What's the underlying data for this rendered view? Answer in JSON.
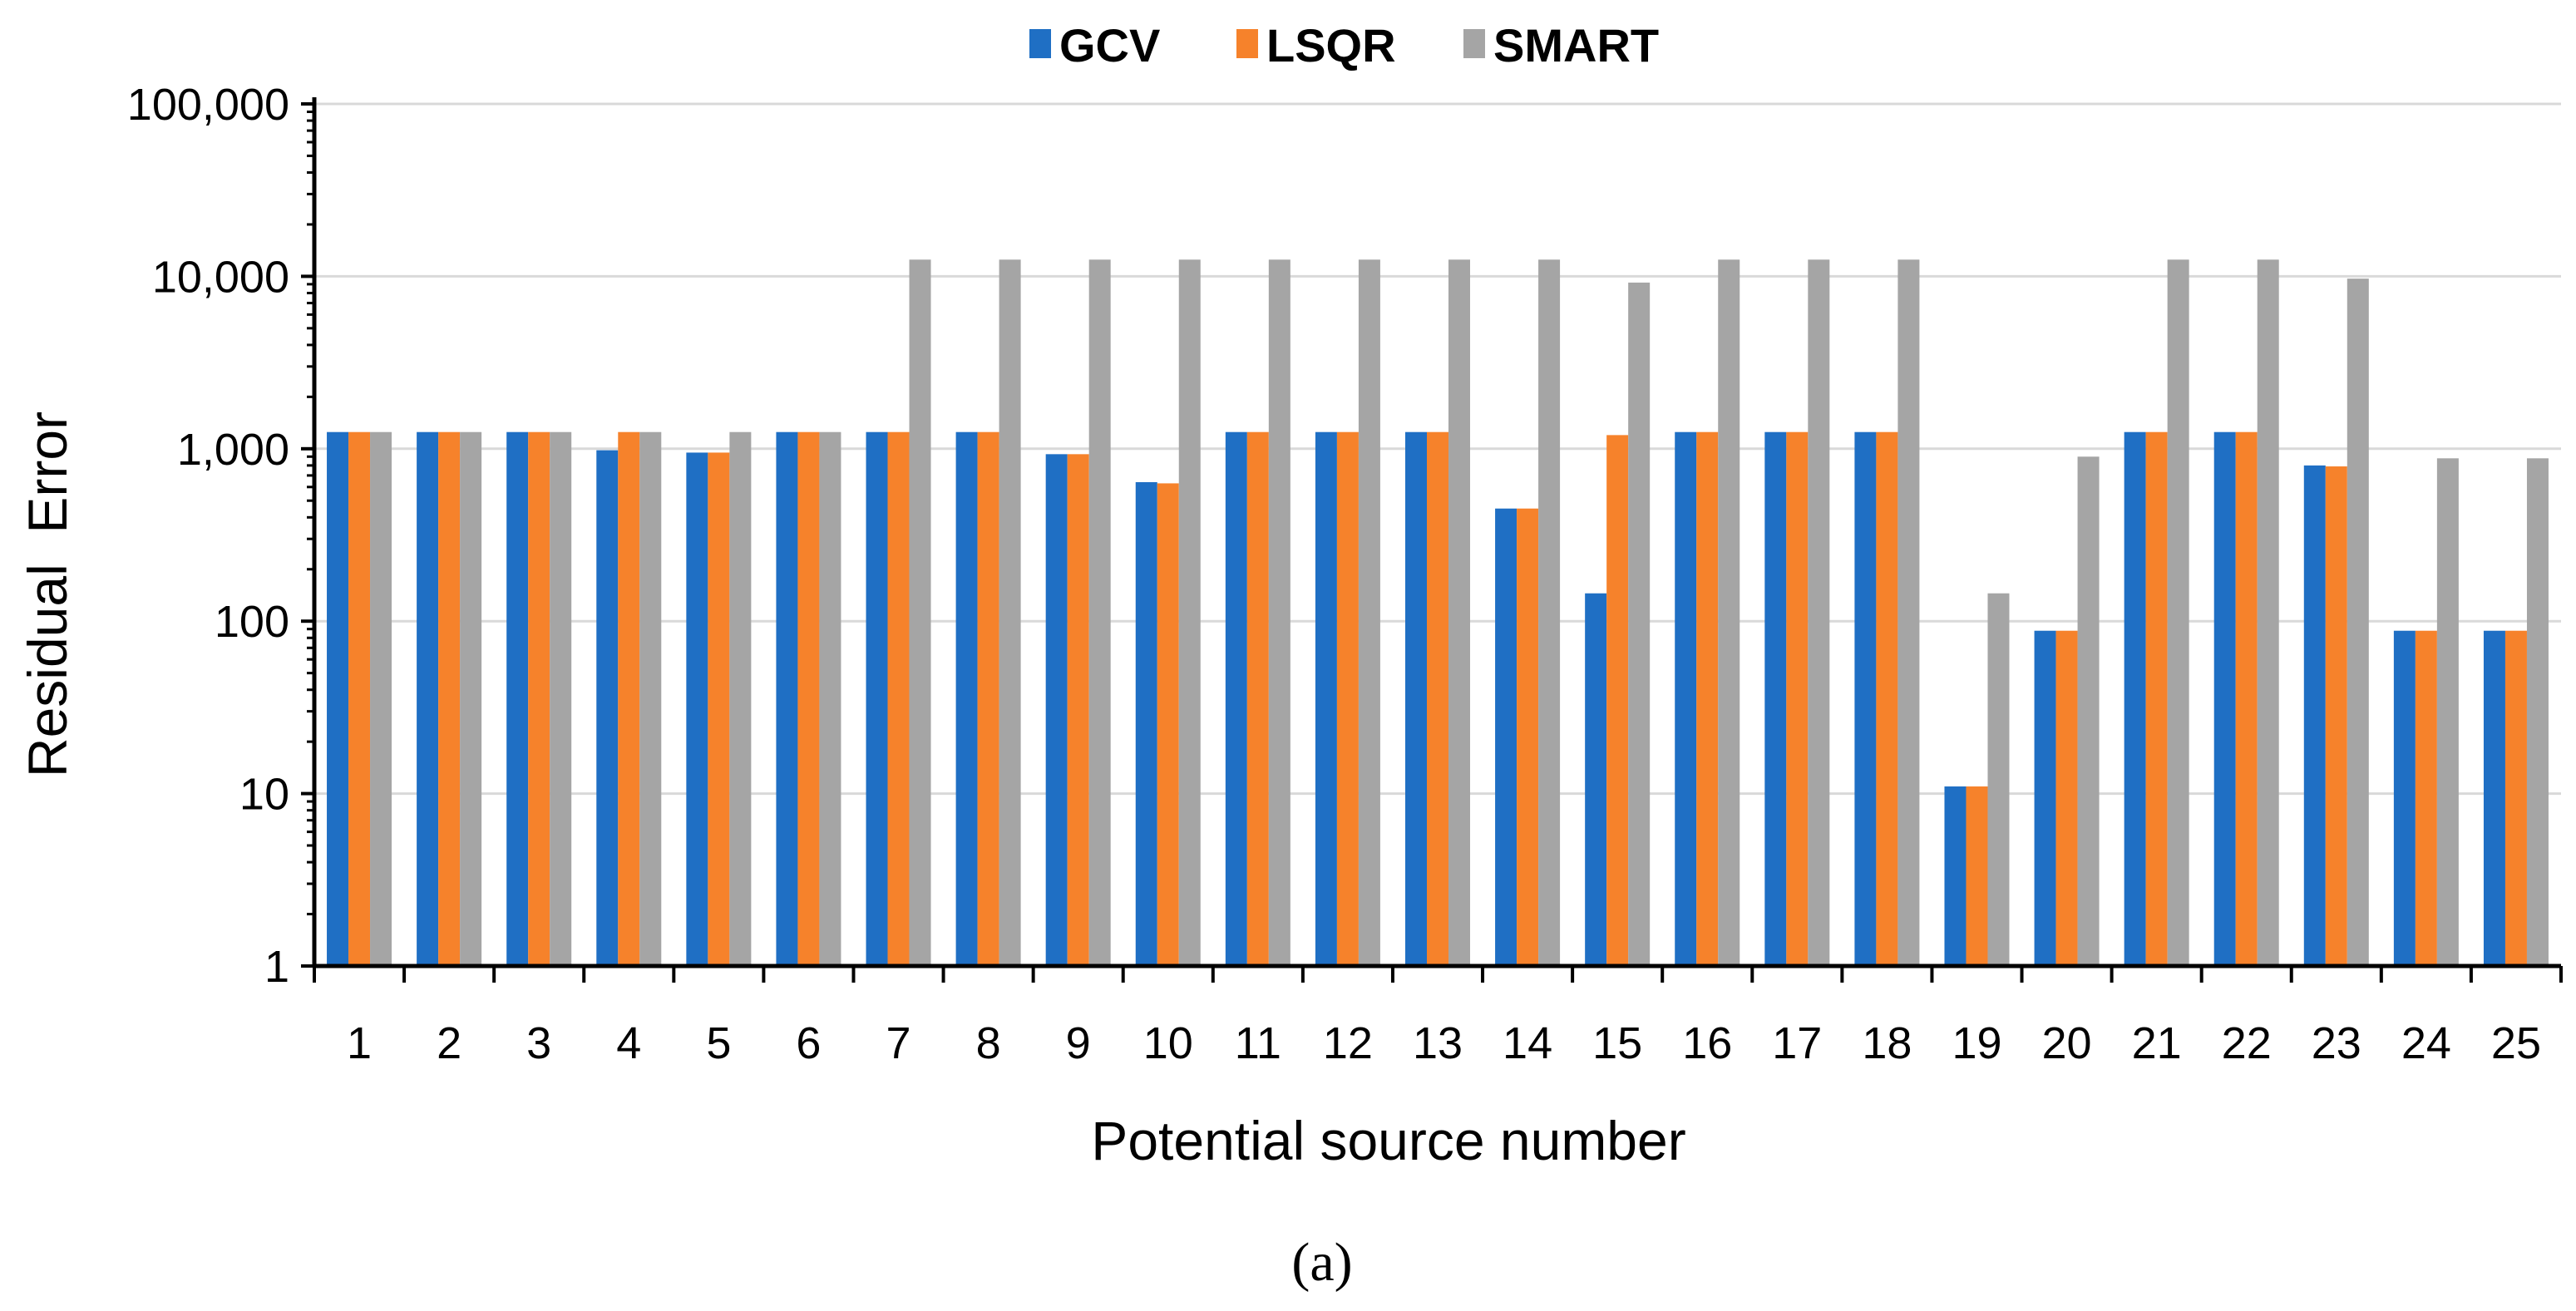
{
  "chart_data": {
    "type": "bar",
    "title": "",
    "xlabel": "Potential source number",
    "ylabel": "Residual  Error",
    "yscale": "log",
    "ylim": [
      1,
      100000
    ],
    "yticks": [
      1,
      10,
      100,
      1000,
      10000,
      100000
    ],
    "ytick_labels": [
      "1",
      "10",
      "100",
      "1,000",
      "10,000",
      "100,000"
    ],
    "categories": [
      "1",
      "2",
      "3",
      "4",
      "5",
      "6",
      "7",
      "8",
      "9",
      "10",
      "11",
      "12",
      "13",
      "14",
      "15",
      "16",
      "17",
      "18",
      "19",
      "20",
      "21",
      "22",
      "23",
      "24",
      "25"
    ],
    "series": [
      {
        "name": "GCV",
        "color": "#1f6fc4",
        "values": [
          1250,
          1250,
          1250,
          980,
          950,
          1250,
          1250,
          1250,
          930,
          640,
          1250,
          1250,
          1250,
          450,
          145,
          1250,
          1250,
          1250,
          11,
          88,
          1250,
          1250,
          800,
          88,
          88
        ]
      },
      {
        "name": "LSQR",
        "color": "#f6822b",
        "values": [
          1250,
          1250,
          1250,
          1250,
          950,
          1250,
          1250,
          1250,
          930,
          630,
          1250,
          1250,
          1250,
          450,
          1200,
          1250,
          1250,
          1250,
          11,
          88,
          1250,
          1250,
          790,
          88,
          88
        ]
      },
      {
        "name": "SMART",
        "color": "#a5a5a5",
        "values": [
          1250,
          1250,
          1250,
          1250,
          1250,
          1250,
          12500,
          12500,
          12500,
          12500,
          12500,
          12500,
          12500,
          12500,
          9200,
          12500,
          12500,
          12500,
          145,
          900,
          12500,
          12500,
          9700,
          880,
          880
        ]
      }
    ],
    "legend_position": "top-center",
    "grid": true
  },
  "caption": "(a)"
}
